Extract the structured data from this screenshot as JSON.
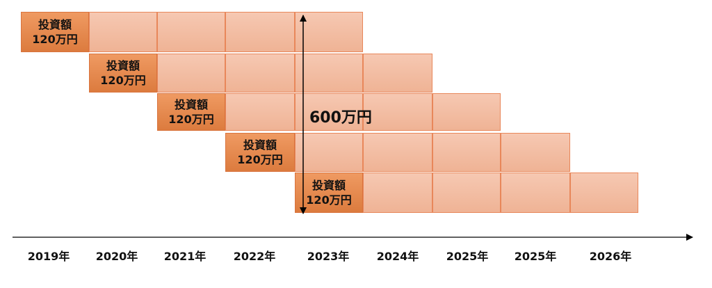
{
  "investment": {
    "label": "投資額",
    "amount": "120万円"
  },
  "total_label": "600万円",
  "years": [
    "2019年",
    "2020年",
    "2021年",
    "2022年",
    "2023年",
    "2024年",
    "2025年",
    "2025年",
    "2026年"
  ],
  "colors": {
    "investment_fill": "#e07f44",
    "holding_fill": "#f3bea5",
    "border": "#e8875a",
    "axis": "#000000"
  }
}
